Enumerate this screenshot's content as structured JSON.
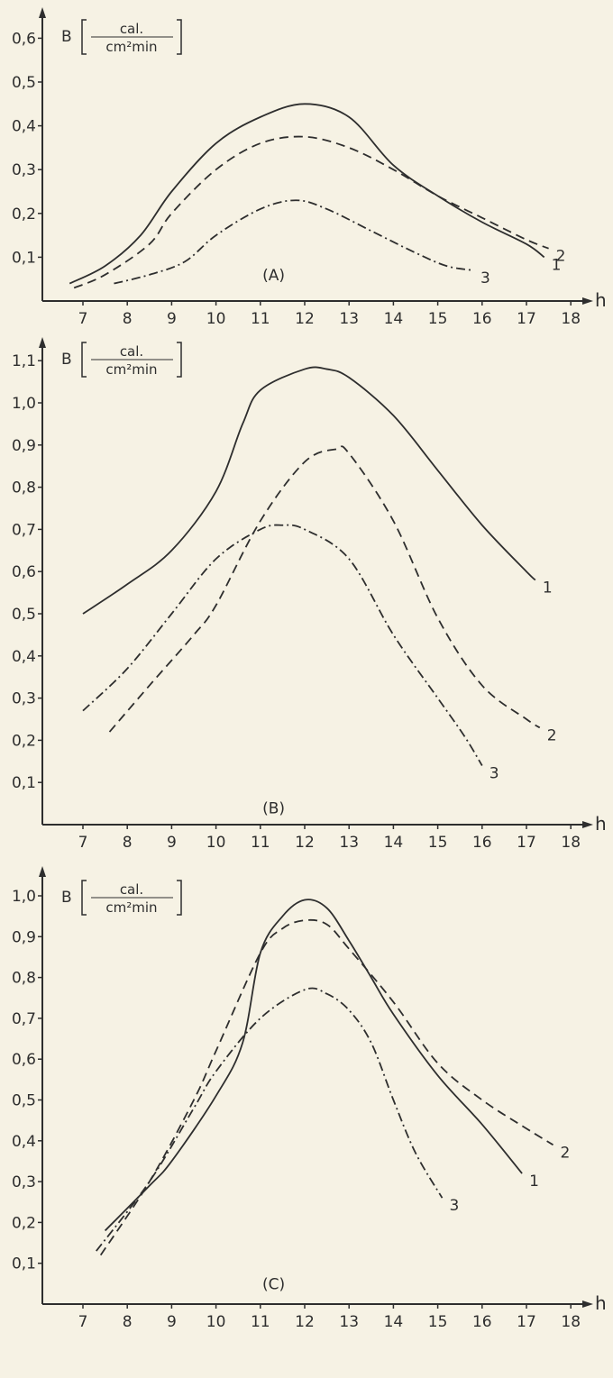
{
  "colors": {
    "background": "#f6f2e4",
    "ink": "#2e2e2e"
  },
  "chart_data": [
    {
      "type": "line",
      "panel_label": "(A)",
      "ylabel": {
        "symbol": "B",
        "numerator": "cal.",
        "denominator": "cm²min"
      },
      "xlabel": "h",
      "xlim": [
        7,
        18
      ],
      "ylim": [
        0,
        0.6
      ],
      "x_ticks": [
        "7",
        "8",
        "9",
        "10",
        "11",
        "12",
        "13",
        "14",
        "15",
        "16",
        "17",
        "18"
      ],
      "y_ticks": [
        "0,1",
        "0,2",
        "0,3",
        "0,4",
        "0,5",
        "0,6"
      ],
      "grid": false,
      "series": [
        {
          "name": "1",
          "style": "solid",
          "points": [
            [
              6.7,
              0.04
            ],
            [
              7.5,
              0.08
            ],
            [
              8.3,
              0.15
            ],
            [
              9,
              0.25
            ],
            [
              10,
              0.36
            ],
            [
              11,
              0.42
            ],
            [
              12,
              0.45
            ],
            [
              13,
              0.42
            ],
            [
              14,
              0.31
            ],
            [
              15,
              0.24
            ],
            [
              16,
              0.18
            ],
            [
              17,
              0.13
            ],
            [
              17.4,
              0.1
            ]
          ]
        },
        {
          "name": "2",
          "style": "dashed",
          "points": [
            [
              6.8,
              0.03
            ],
            [
              7.5,
              0.06
            ],
            [
              8.5,
              0.13
            ],
            [
              9,
              0.2
            ],
            [
              10,
              0.3
            ],
            [
              11,
              0.36
            ],
            [
              12,
              0.375
            ],
            [
              13,
              0.35
            ],
            [
              14,
              0.3
            ],
            [
              15,
              0.24
            ],
            [
              16,
              0.19
            ],
            [
              17,
              0.14
            ],
            [
              17.5,
              0.12
            ]
          ]
        },
        {
          "name": "3",
          "style": "dash-dot",
          "points": [
            [
              7.7,
              0.04
            ],
            [
              8.5,
              0.06
            ],
            [
              9.3,
              0.09
            ],
            [
              10,
              0.15
            ],
            [
              11,
              0.21
            ],
            [
              11.8,
              0.23
            ],
            [
              12.5,
              0.21
            ],
            [
              13.5,
              0.16
            ],
            [
              14.5,
              0.11
            ],
            [
              15.2,
              0.08
            ],
            [
              15.8,
              0.07
            ]
          ]
        }
      ]
    },
    {
      "type": "line",
      "panel_label": "(B)",
      "ylabel": {
        "symbol": "B",
        "numerator": "cal.",
        "denominator": "cm²min"
      },
      "xlabel": "h",
      "xlim": [
        7,
        18
      ],
      "ylim": [
        0,
        1.1
      ],
      "x_ticks": [
        "7",
        "8",
        "9",
        "10",
        "11",
        "12",
        "13",
        "14",
        "15",
        "16",
        "17",
        "18"
      ],
      "y_ticks": [
        "0,1",
        "0,2",
        "0,3",
        "0,4",
        "0,5",
        "0,6",
        "0,7",
        "0,8",
        "0,9",
        "1,0",
        "1,1"
      ],
      "grid": false,
      "series": [
        {
          "name": "1",
          "style": "solid",
          "points": [
            [
              7,
              0.5
            ],
            [
              8,
              0.57
            ],
            [
              9,
              0.65
            ],
            [
              10,
              0.79
            ],
            [
              10.6,
              0.95
            ],
            [
              11,
              1.03
            ],
            [
              12,
              1.08
            ],
            [
              12.5,
              1.08
            ],
            [
              13,
              1.06
            ],
            [
              14,
              0.97
            ],
            [
              15,
              0.84
            ],
            [
              16,
              0.71
            ],
            [
              17,
              0.6
            ],
            [
              17.2,
              0.58
            ]
          ]
        },
        {
          "name": "2",
          "style": "dashed",
          "points": [
            [
              7.6,
              0.22
            ],
            [
              8.5,
              0.33
            ],
            [
              9.5,
              0.45
            ],
            [
              10,
              0.52
            ],
            [
              11,
              0.72
            ],
            [
              12,
              0.86
            ],
            [
              12.7,
              0.89
            ],
            [
              13,
              0.88
            ],
            [
              14,
              0.72
            ],
            [
              15,
              0.49
            ],
            [
              16,
              0.33
            ],
            [
              17,
              0.25
            ],
            [
              17.3,
              0.23
            ]
          ]
        },
        {
          "name": "3",
          "style": "dash-dot",
          "points": [
            [
              7,
              0.27
            ],
            [
              8,
              0.37
            ],
            [
              9,
              0.5
            ],
            [
              10,
              0.63
            ],
            [
              11,
              0.7
            ],
            [
              11.5,
              0.71
            ],
            [
              12,
              0.7
            ],
            [
              13,
              0.63
            ],
            [
              14,
              0.45
            ],
            [
              15,
              0.3
            ],
            [
              15.6,
              0.21
            ],
            [
              16,
              0.14
            ]
          ]
        }
      ]
    },
    {
      "type": "line",
      "panel_label": "(C)",
      "ylabel": {
        "symbol": "B",
        "numerator": "cal.",
        "denominator": "cm²min"
      },
      "xlabel": "h",
      "xlim": [
        7,
        18
      ],
      "ylim": [
        0,
        1.0
      ],
      "x_ticks": [
        "7",
        "8",
        "9",
        "10",
        "11",
        "12",
        "13",
        "14",
        "15",
        "16",
        "17",
        "18"
      ],
      "y_ticks": [
        "0,1",
        "0,2",
        "0,3",
        "0,4",
        "0,5",
        "0,6",
        "0,7",
        "0,8",
        "0,9",
        "1,0"
      ],
      "grid": false,
      "series": [
        {
          "name": "1",
          "style": "solid",
          "points": [
            [
              7.5,
              0.18
            ],
            [
              8.5,
              0.29
            ],
            [
              9,
              0.35
            ],
            [
              10,
              0.51
            ],
            [
              10.6,
              0.64
            ],
            [
              11,
              0.86
            ],
            [
              11.5,
              0.95
            ],
            [
              12,
              0.99
            ],
            [
              12.5,
              0.97
            ],
            [
              13,
              0.89
            ],
            [
              13.5,
              0.8
            ],
            [
              14,
              0.71
            ],
            [
              15,
              0.56
            ],
            [
              16,
              0.44
            ],
            [
              16.9,
              0.32
            ]
          ]
        },
        {
          "name": "2",
          "style": "dashed",
          "points": [
            [
              7.4,
              0.12
            ],
            [
              8.5,
              0.3
            ],
            [
              9.5,
              0.5
            ],
            [
              10,
              0.62
            ],
            [
              11,
              0.86
            ],
            [
              11.5,
              0.92
            ],
            [
              12,
              0.94
            ],
            [
              12.5,
              0.93
            ],
            [
              13,
              0.87
            ],
            [
              14,
              0.74
            ],
            [
              15,
              0.59
            ],
            [
              16,
              0.5
            ],
            [
              17,
              0.43
            ],
            [
              17.6,
              0.39
            ]
          ]
        },
        {
          "name": "3",
          "style": "dash-dot",
          "points": [
            [
              7.3,
              0.13
            ],
            [
              8.5,
              0.3
            ],
            [
              9.5,
              0.48
            ],
            [
              10,
              0.57
            ],
            [
              11,
              0.7
            ],
            [
              12,
              0.77
            ],
            [
              12.5,
              0.76
            ],
            [
              13,
              0.72
            ],
            [
              13.5,
              0.64
            ],
            [
              14,
              0.5
            ],
            [
              14.5,
              0.37
            ],
            [
              15.1,
              0.26
            ]
          ]
        }
      ]
    }
  ]
}
